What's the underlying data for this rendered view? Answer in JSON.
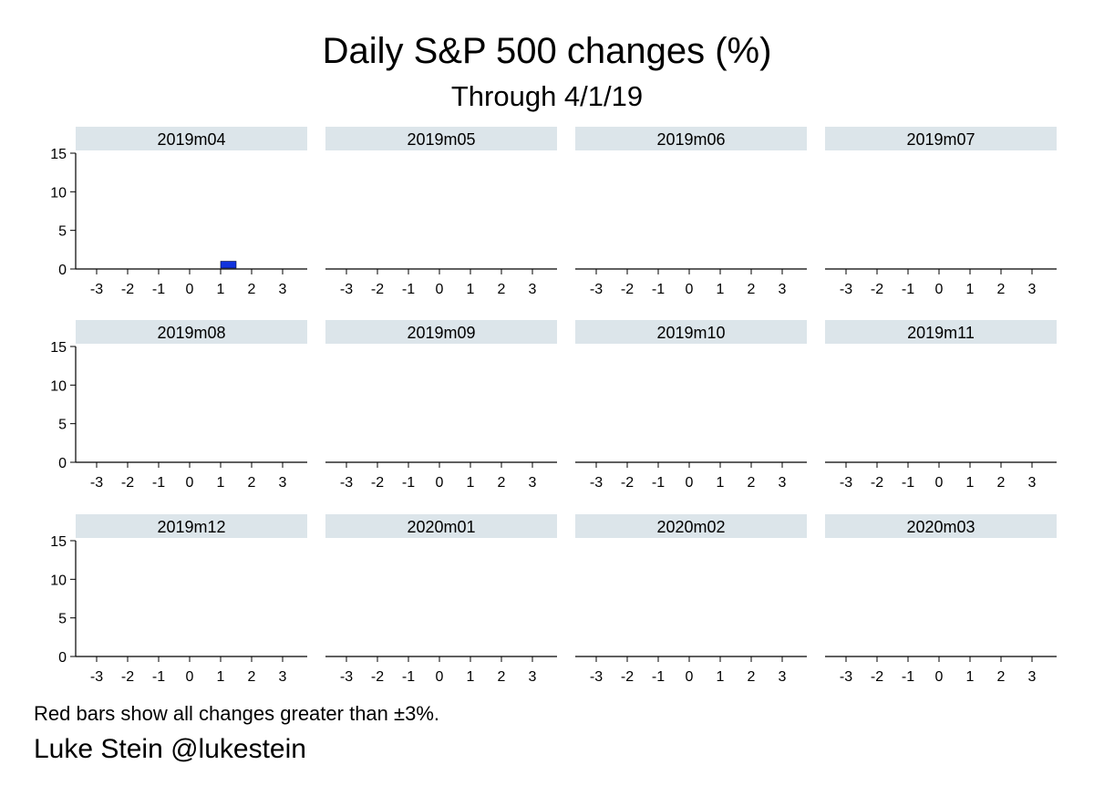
{
  "title": "Daily S&P 500 changes (%)",
  "subtitle": "Through 4/1/19",
  "note": "Red bars show all changes greater than ±3%.",
  "credit": "Luke Stein @lukestein",
  "colors": {
    "normal_bar": "#1133dd",
    "large_change_bar": "#dd2222",
    "panel_header": "#dce5ea",
    "axis": "#000000"
  },
  "chart_data": {
    "type": "bar",
    "layout": "small-multiples",
    "grid": false,
    "x_ticks": [
      -3,
      -2,
      -1,
      0,
      1,
      2,
      3
    ],
    "y_ticks": [
      0,
      5,
      10,
      15
    ],
    "xlim": [
      -4,
      4
    ],
    "ylim": [
      0,
      15
    ],
    "panels": [
      {
        "label": "2019m04",
        "bars": [
          {
            "x_start": 1.0,
            "x_end": 1.5,
            "value": 1
          }
        ]
      },
      {
        "label": "2019m05",
        "bars": []
      },
      {
        "label": "2019m06",
        "bars": []
      },
      {
        "label": "2019m07",
        "bars": []
      },
      {
        "label": "2019m08",
        "bars": []
      },
      {
        "label": "2019m09",
        "bars": []
      },
      {
        "label": "2019m10",
        "bars": []
      },
      {
        "label": "2019m11",
        "bars": []
      },
      {
        "label": "2019m12",
        "bars": []
      },
      {
        "label": "2020m01",
        "bars": []
      },
      {
        "label": "2020m02",
        "bars": []
      },
      {
        "label": "2020m03",
        "bars": []
      }
    ]
  }
}
